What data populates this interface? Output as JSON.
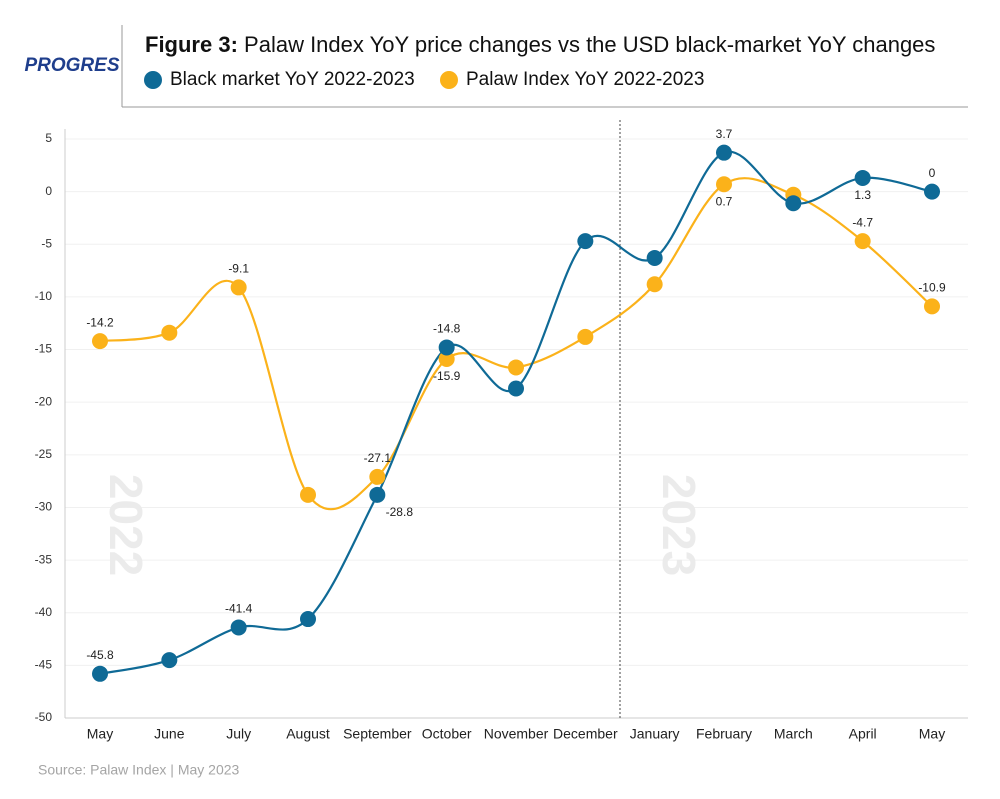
{
  "chart_data": {
    "type": "line",
    "brand": "PROGRES",
    "title_label": "Figure 3:",
    "title": "Palaw Index YoY price changes vs the USD black-market YoY changes",
    "categories": [
      "May",
      "June",
      "July",
      "August",
      "September",
      "October",
      "November",
      "December",
      "January",
      "February",
      "March",
      "April",
      "May"
    ],
    "series": [
      {
        "name": "Black market YoY 2022-2023",
        "color": "#0f6a96",
        "values": [
          -45.8,
          -44.5,
          -41.4,
          -40.6,
          -28.8,
          -14.8,
          -18.7,
          -4.7,
          -6.3,
          3.7,
          -1.1,
          1.3,
          0
        ],
        "value_labels": [
          "-45.8",
          null,
          "-41.4",
          null,
          "-28.8",
          "-14.8",
          null,
          null,
          null,
          "3.7",
          null,
          "1.3",
          "0"
        ]
      },
      {
        "name": "Palaw Index YoY 2022-2023",
        "color": "#fbb21a",
        "values": [
          -14.2,
          -13.4,
          -9.1,
          -28.8,
          -27.1,
          -15.9,
          -16.7,
          -13.8,
          -8.8,
          0.7,
          -0.3,
          -4.7,
          -10.9
        ],
        "value_labels": [
          "-14.2",
          null,
          "-9.1",
          null,
          "-27.1",
          "-15.9",
          null,
          null,
          null,
          "0.7",
          null,
          "-4.7",
          "-10.9"
        ]
      }
    ],
    "ylim": [
      -50,
      5
    ],
    "yticks": [
      5,
      0,
      -5,
      -10,
      -15,
      -20,
      -25,
      -30,
      -35,
      -40,
      -45,
      -50
    ],
    "grid": true,
    "annotations": [
      "2022",
      "2023"
    ],
    "source": "Source: Palaw Index  |  May 2023"
  }
}
